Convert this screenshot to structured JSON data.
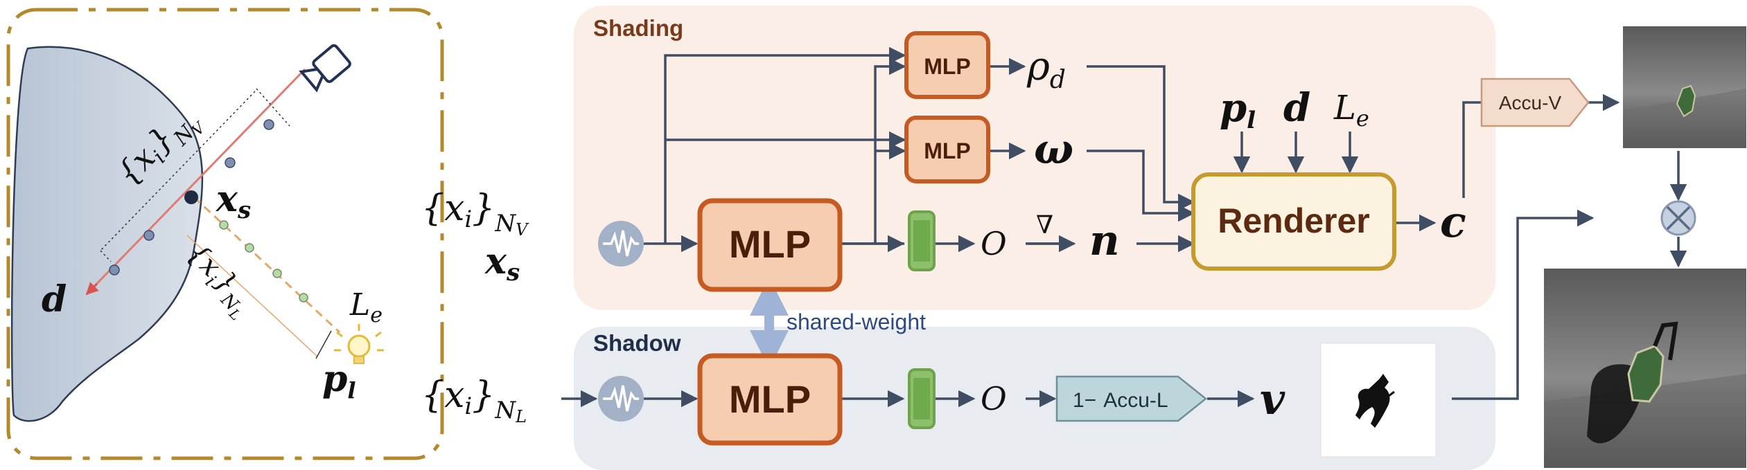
{
  "panels": {
    "shading_title": "Shading",
    "shadow_title": "Shadow"
  },
  "labels": {
    "mlp_small_1": "MLP",
    "mlp_small_2": "MLP",
    "mlp_big_1": "MLP",
    "mlp_big_2": "MLP",
    "renderer": "Renderer",
    "shared_weight": "shared-weight",
    "accu_v": "Accu-V",
    "one_minus": "1−",
    "accu_l": "Accu-L"
  },
  "symbols": {
    "xi": "{x",
    "xi_i": "i",
    "brace_close": "}",
    "nv": "N",
    "nv_sub": "V",
    "nl": "N",
    "nl_sub": "L",
    "xs": "x",
    "xs_sub": "s",
    "d": "d",
    "pl": "p",
    "pl_sub": "l",
    "le": "L",
    "le_sub": "e",
    "rho": "ρ",
    "rho_sub": "d",
    "omega": "ω",
    "o": "O",
    "nabla": "∇",
    "n": "n",
    "c": "c",
    "v": "v"
  },
  "colors": {
    "shading_bg": "#fbeee6",
    "shadow_bg": "#e8ebf0",
    "mlp_fill": "#f6cdb1",
    "mlp_stroke": "#c55a22",
    "renderer_fill": "#fbf2df",
    "renderer_stroke": "#c59a2e",
    "green": "#8cc06a",
    "arrow": "#3f4e63",
    "object_fill": "#c9d3df",
    "ray_view": "#e07b72",
    "ray_light": "#e3a76c",
    "gold_border": "#b28a2c"
  }
}
